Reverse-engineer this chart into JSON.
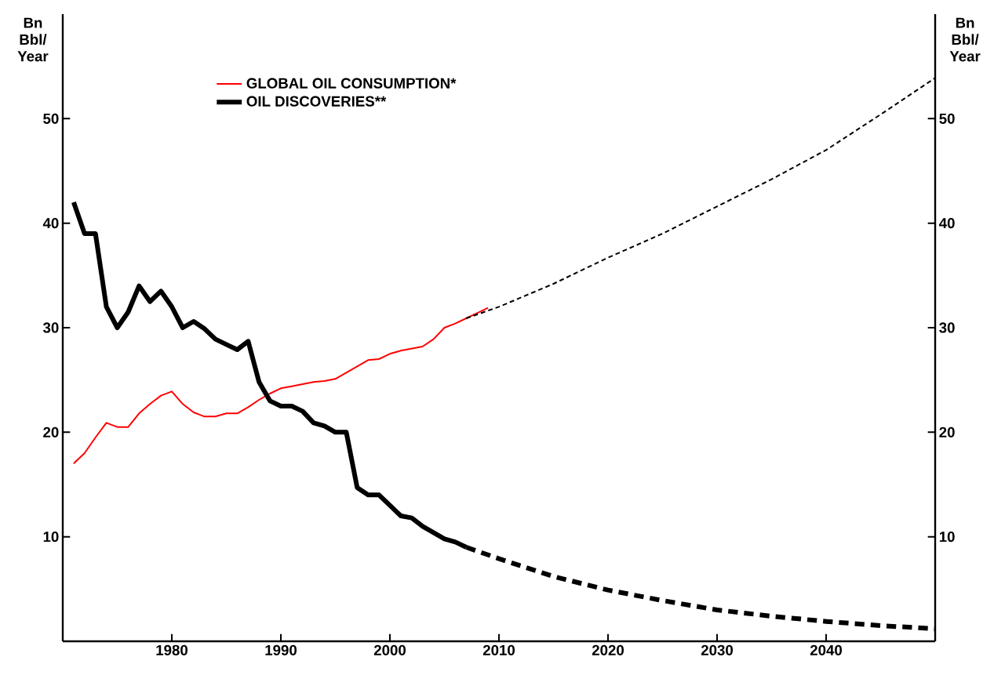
{
  "chart_data": {
    "type": "line",
    "ylabel": "Bn Bbl/ Year",
    "y2label": "Bn Bbl/ Year",
    "xlim": [
      1970,
      2050
    ],
    "xticks": [
      1980,
      1990,
      2000,
      2010,
      2020,
      2030,
      2040
    ],
    "ylim": [
      0,
      60
    ],
    "yticks": [
      10,
      20,
      30,
      40,
      50
    ],
    "y2lim": [
      0,
      60
    ],
    "y2ticks": [
      10,
      20,
      30,
      40,
      50
    ],
    "legend": "top left",
    "grid": false,
    "series": [
      {
        "name": "GLOBAL OIL CONSUMPTION*",
        "color": "#ff0000",
        "line_style": "solid",
        "x": [
          1971,
          1972,
          1973,
          1974,
          1975,
          1976,
          1977,
          1978,
          1979,
          1980,
          1981,
          1982,
          1983,
          1984,
          1985,
          1986,
          1987,
          1988,
          1989,
          1990,
          1991,
          1992,
          1993,
          1994,
          1995,
          1996,
          1997,
          1998,
          1999,
          2000,
          2001,
          2002,
          2003,
          2004,
          2005,
          2006,
          2007,
          2008,
          2009
        ],
        "values": [
          17,
          18,
          19.5,
          20.9,
          20.5,
          20.5,
          21.8,
          22.7,
          23.5,
          23.9,
          22.7,
          21.9,
          21.5,
          21.5,
          21.8,
          21.8,
          22.4,
          23.1,
          23.7,
          24.2,
          24.4,
          24.6,
          24.8,
          24.9,
          25.1,
          25.7,
          26.3,
          26.9,
          27,
          27.5,
          27.8,
          28,
          28.2,
          28.9,
          30,
          30.4,
          30.9,
          31.4,
          31.9
        ]
      },
      {
        "name": "OIL DISCOVERIES**",
        "color": "#000000",
        "line_style": "solid",
        "x": [
          1971,
          1972,
          1973,
          1974,
          1975,
          1976,
          1977,
          1978,
          1979,
          1980,
          1981,
          1982,
          1983,
          1984,
          1985,
          1986,
          1987,
          1988,
          1989,
          1990,
          1991,
          1992,
          1993,
          1994,
          1995,
          1996,
          1997,
          1998,
          1999,
          2000,
          2001,
          2002,
          2003,
          2004,
          2005,
          2006,
          2007
        ],
        "values": [
          42,
          39,
          39,
          32,
          30,
          31.5,
          34,
          32.5,
          33.5,
          32,
          30,
          30.6,
          29.9,
          28.9,
          28.4,
          27.9,
          28.7,
          24.8,
          23,
          22.5,
          22.5,
          22,
          20.9,
          20.6,
          20,
          20,
          14.7,
          14,
          14,
          13,
          12,
          11.8,
          11,
          10.4,
          9.8,
          9.5,
          9
        ]
      },
      {
        "color": "#000000",
        "line_style": "dashed",
        "x": [
          2007,
          2010,
          2015,
          2020,
          2025,
          2030,
          2035,
          2040,
          2045,
          2050
        ],
        "values": [
          30.9,
          32,
          34.2,
          36.7,
          39,
          41.6,
          44.2,
          47,
          50.4,
          53.9
        ]
      },
      {
        "color": "#000000",
        "line_style": "dashed",
        "x": [
          2007,
          2010,
          2015,
          2020,
          2025,
          2030,
          2035,
          2040,
          2045,
          2050
        ],
        "values": [
          9,
          7.9,
          6.2,
          4.9,
          3.9,
          3,
          2.4,
          1.9,
          1.5,
          1.2
        ]
      }
    ]
  }
}
